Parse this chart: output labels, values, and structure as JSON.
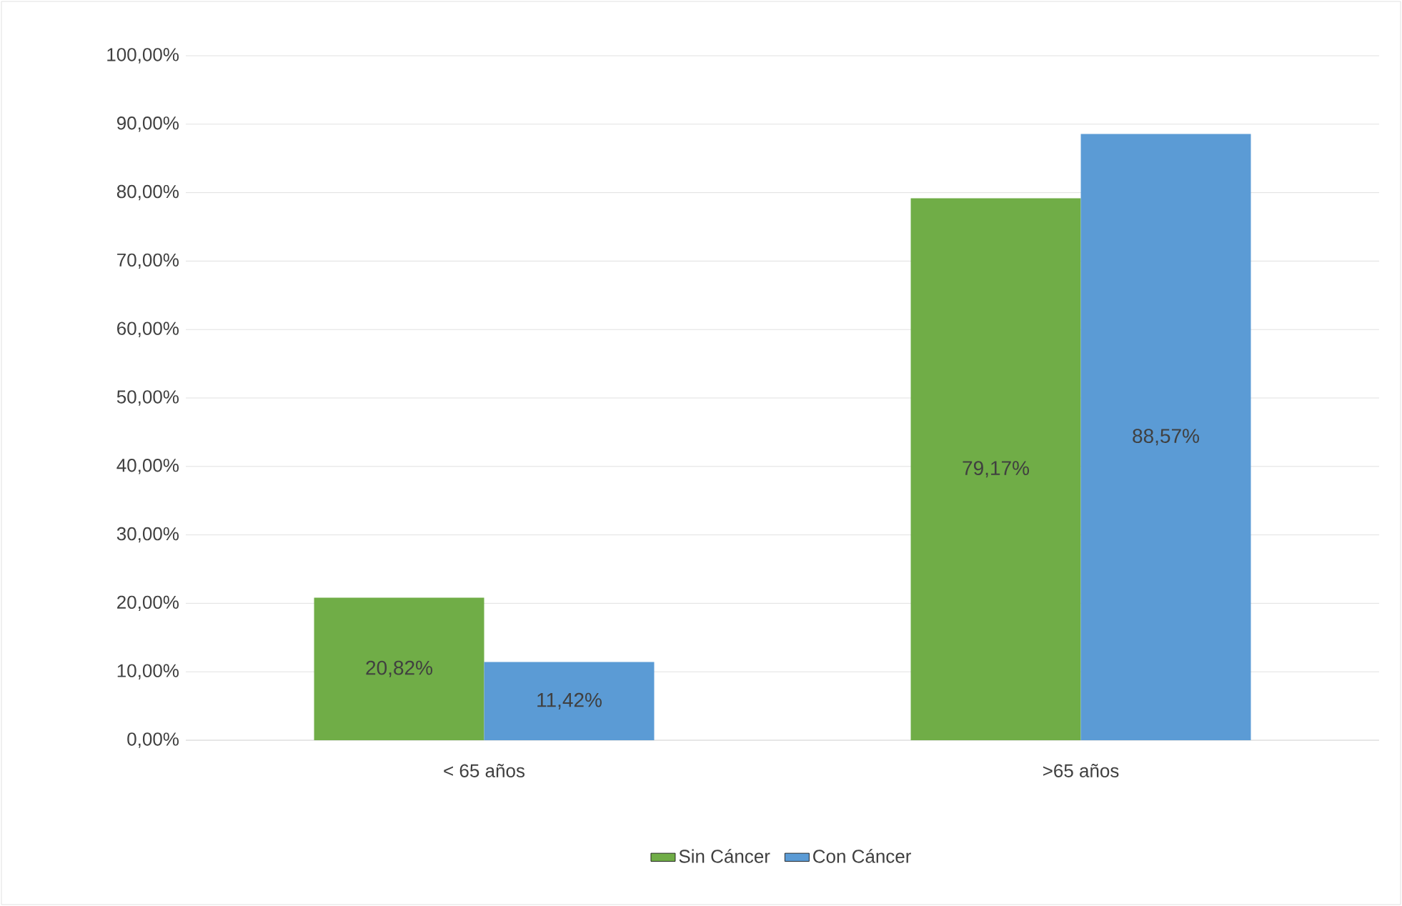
{
  "chart_data": {
    "type": "bar",
    "categories": [
      "< 65 años",
      ">65 años"
    ],
    "series": [
      {
        "name": "Sin Cáncer",
        "color": "#70ad47",
        "values": [
          20.82,
          79.17
        ],
        "value_labels": [
          "20,82%",
          "79,17%"
        ]
      },
      {
        "name": "Con Cáncer",
        "color": "#5b9bd5",
        "values": [
          11.42,
          88.57
        ],
        "value_labels": [
          "11,42%",
          "88,57%"
        ]
      }
    ],
    "ylim": [
      0,
      100
    ],
    "yticks": [
      {
        "value": 0,
        "label": "0,00%"
      },
      {
        "value": 10,
        "label": "10,00%"
      },
      {
        "value": 20,
        "label": "20,00%"
      },
      {
        "value": 30,
        "label": "30,00%"
      },
      {
        "value": 40,
        "label": "40,00%"
      },
      {
        "value": 50,
        "label": "50,00%"
      },
      {
        "value": 60,
        "label": "60,00%"
      },
      {
        "value": 70,
        "label": "70,00%"
      },
      {
        "value": 80,
        "label": "80,00%"
      },
      {
        "value": 90,
        "label": "90,00%"
      },
      {
        "value": 100,
        "label": "100,00%"
      }
    ],
    "grid": "y",
    "legend": "bottom"
  }
}
